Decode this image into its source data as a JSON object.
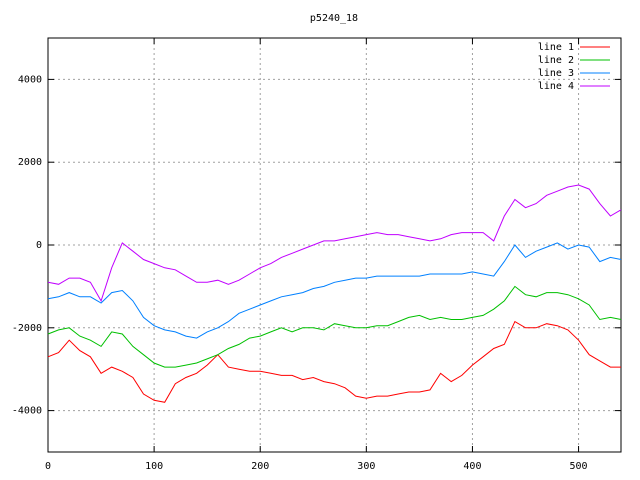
{
  "chart_data": {
    "type": "line",
    "title": "p5240_18",
    "x": [
      0,
      10,
      20,
      30,
      40,
      50,
      60,
      70,
      80,
      90,
      100,
      110,
      120,
      130,
      140,
      150,
      160,
      170,
      180,
      190,
      200,
      210,
      220,
      230,
      240,
      250,
      260,
      270,
      280,
      290,
      300,
      310,
      320,
      330,
      340,
      350,
      360,
      370,
      380,
      390,
      400,
      410,
      420,
      430,
      440,
      450,
      460,
      470,
      480,
      490,
      500,
      510,
      520,
      530,
      540
    ],
    "series": [
      {
        "name": "line 1",
        "color": "#ff0000",
        "values": [
          -2700,
          -2600,
          -2300,
          -2550,
          -2700,
          -3100,
          -2950,
          -3050,
          -3200,
          -3600,
          -3750,
          -3800,
          -3350,
          -3200,
          -3100,
          -2900,
          -2650,
          -2950,
          -3000,
          -3050,
          -3050,
          -3100,
          -3150,
          -3150,
          -3250,
          -3200,
          -3300,
          -3350,
          -3450,
          -3650,
          -3700,
          -3650,
          -3650,
          -3600,
          -3550,
          -3550,
          -3500,
          -3100,
          -3300,
          -3150,
          -2900,
          -2700,
          -2500,
          -2400,
          -1850,
          -2000,
          -2000,
          -1900,
          -1950,
          -2050,
          -2300,
          -2650,
          -2800,
          -2950,
          -2950
        ]
      },
      {
        "name": "line 2",
        "color": "#00c000",
        "values": [
          -2150,
          -2050,
          -2000,
          -2200,
          -2300,
          -2450,
          -2100,
          -2150,
          -2450,
          -2650,
          -2850,
          -2950,
          -2950,
          -2900,
          -2850,
          -2750,
          -2650,
          -2500,
          -2400,
          -2250,
          -2200,
          -2100,
          -2000,
          -2100,
          -2000,
          -2000,
          -2050,
          -1900,
          -1950,
          -2000,
          -2000,
          -1950,
          -1950,
          -1850,
          -1750,
          -1700,
          -1800,
          -1750,
          -1800,
          -1800,
          -1750,
          -1700,
          -1550,
          -1350,
          -1000,
          -1200,
          -1250,
          -1150,
          -1150,
          -1200,
          -1300,
          -1450,
          -1800,
          -1750,
          -1800
        ]
      },
      {
        "name": "line 3",
        "color": "#0080ff",
        "values": [
          -1300,
          -1250,
          -1150,
          -1250,
          -1250,
          -1400,
          -1150,
          -1100,
          -1350,
          -1750,
          -1950,
          -2050,
          -2100,
          -2200,
          -2250,
          -2100,
          -2000,
          -1850,
          -1650,
          -1550,
          -1450,
          -1350,
          -1250,
          -1200,
          -1150,
          -1050,
          -1000,
          -900,
          -850,
          -800,
          -800,
          -750,
          -750,
          -750,
          -750,
          -750,
          -700,
          -700,
          -700,
          -700,
          -650,
          -700,
          -750,
          -400,
          0,
          -300,
          -150,
          -50,
          50,
          -100,
          0,
          -50,
          -400,
          -300,
          -350
        ]
      },
      {
        "name": "line 4",
        "color": "#c000ff",
        "values": [
          -900,
          -950,
          -800,
          -800,
          -900,
          -1350,
          -550,
          50,
          -150,
          -350,
          -450,
          -550,
          -600,
          -750,
          -900,
          -900,
          -850,
          -950,
          -850,
          -700,
          -550,
          -450,
          -300,
          -200,
          -100,
          0,
          100,
          100,
          150,
          200,
          250,
          300,
          250,
          250,
          200,
          150,
          100,
          150,
          250,
          300,
          300,
          300,
          100,
          700,
          1100,
          900,
          1000,
          1200,
          1300,
          1400,
          1450,
          1350,
          1000,
          700,
          850
        ]
      }
    ],
    "xlim": [
      0,
      540
    ],
    "ylim": [
      -5000,
      5000
    ],
    "xticks": [
      0,
      100,
      200,
      300,
      400,
      500
    ],
    "yticks": [
      -4000,
      -2000,
      0,
      2000,
      4000
    ],
    "grid": true,
    "legend": "top-right"
  }
}
